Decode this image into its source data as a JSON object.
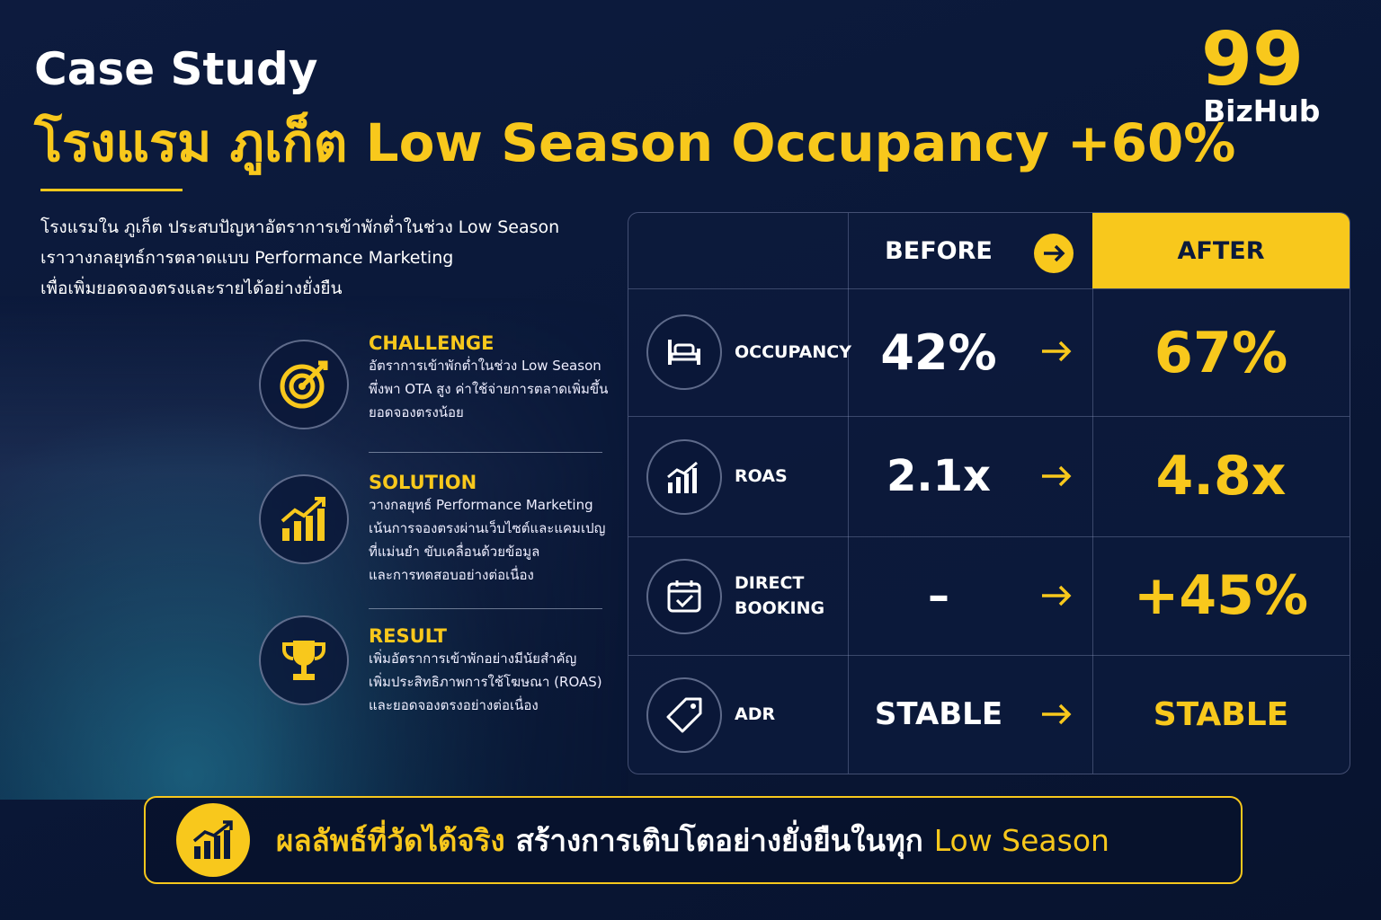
{
  "header": {
    "kicker": "Case Study",
    "title": "โรงแรม ภูเก็ต Low Season Occupancy +60%"
  },
  "logo": {
    "number": "99",
    "name": "BizHub"
  },
  "intro": [
    "โรงแรมใน ภูเก็ต ประสบปัญหาอัตราการเข้าพักต่ำในช่วง Low Season",
    "เราวางกลยุทธ์การตลาดแบบ Performance Marketing",
    "เพื่อเพิ่มยอดจองตรงและรายได้อย่างยั่งยืน"
  ],
  "sections": [
    {
      "heading": "CHALLENGE",
      "lines": [
        "อัตราการเข้าพักต่ำในช่วง Low Season",
        "พึ่งพา OTA สูง ค่าใช้จ่ายการตลาดเพิ่มขึ้น",
        "ยอดจองตรงน้อย"
      ]
    },
    {
      "heading": "SOLUTION",
      "lines": [
        "วางกลยุทธ์ Performance Marketing",
        "เน้นการจองตรงผ่านเว็บไซต์และแคมเปญ",
        "ที่แม่นยำ ขับเคลื่อนด้วยข้อมูล",
        "และการทดสอบอย่างต่อเนื่อง"
      ]
    },
    {
      "heading": "RESULT",
      "lines": [
        "เพิ่มอัตราการเข้าพักอย่างมีนัยสำคัญ",
        "เพิ่มประสิทธิภาพการใช้โฆษณา (ROAS)",
        "และยอดจองตรงอย่างต่อเนื่อง"
      ]
    }
  ],
  "table": {
    "headers": [
      "BEFORE",
      "AFTER"
    ],
    "rows": [
      [
        "OCCUPANCY",
        "42%",
        "67%"
      ],
      [
        "ROAS",
        "2.1x",
        "4.8x"
      ],
      [
        "DIRECT BOOKING",
        "–",
        "+45%"
      ],
      [
        "ADR",
        "STABLE",
        "STABLE"
      ]
    ]
  },
  "footer": {
    "highlight": "ผลลัพธ์ที่วัดได้จริง",
    "text": "สร้างการเติบโตอย่างยั่งยืนในทุก",
    "accent": "Low Season"
  }
}
